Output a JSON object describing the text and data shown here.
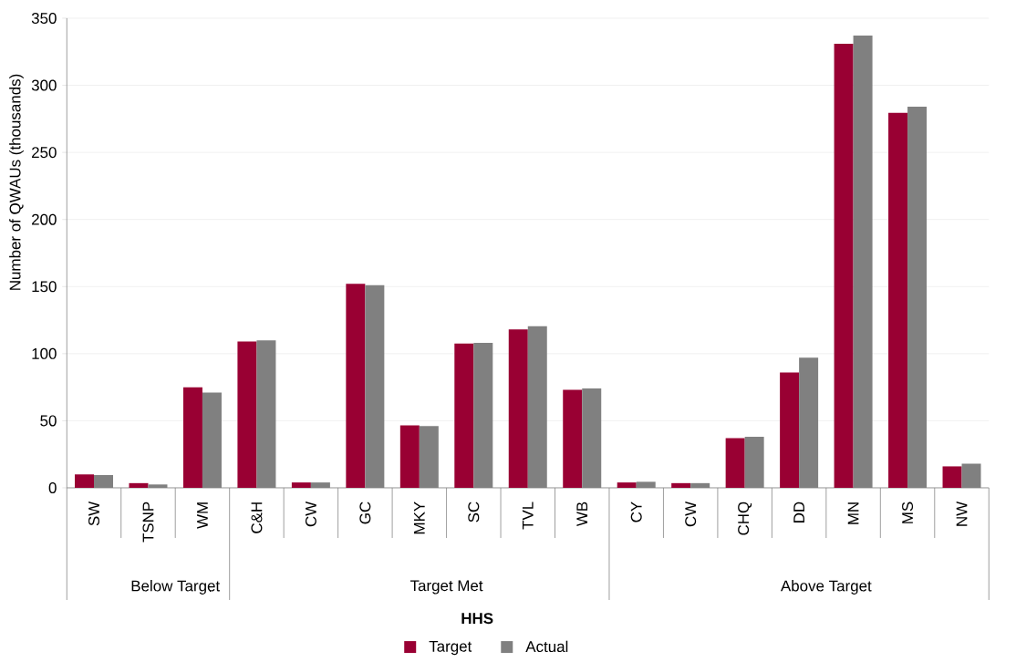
{
  "chart_data": {
    "type": "bar",
    "xlabel": "HHS",
    "ylabel": "Number of QWAUs (thousands)",
    "categories": [
      "SW",
      "TSNP",
      "WM",
      "C&H",
      "CW",
      "GC",
      "MKY",
      "SC",
      "TVL",
      "WB",
      "CY",
      "CW",
      "CHQ",
      "DD",
      "MN",
      "MS",
      "NW"
    ],
    "series": [
      {
        "name": "Target",
        "color": "#990033",
        "values": [
          10,
          3.5,
          75,
          109,
          4,
          152,
          46.5,
          107.5,
          118,
          73,
          4,
          3.5,
          37,
          86,
          331,
          279.5,
          16
        ]
      },
      {
        "name": "Actual",
        "color": "#808080",
        "values": [
          9.5,
          2.5,
          71,
          110,
          4,
          151,
          46,
          108,
          120.5,
          74,
          4.5,
          3.5,
          38,
          97,
          337,
          284,
          18
        ]
      }
    ],
    "annotations": [
      "Below Target",
      "Target Met",
      "Above Target"
    ],
    "ylim": [
      0,
      350
    ],
    "yticks": [
      0,
      50,
      100,
      150,
      200,
      250,
      300,
      350
    ],
    "grid": "y",
    "legend": "bottom"
  }
}
